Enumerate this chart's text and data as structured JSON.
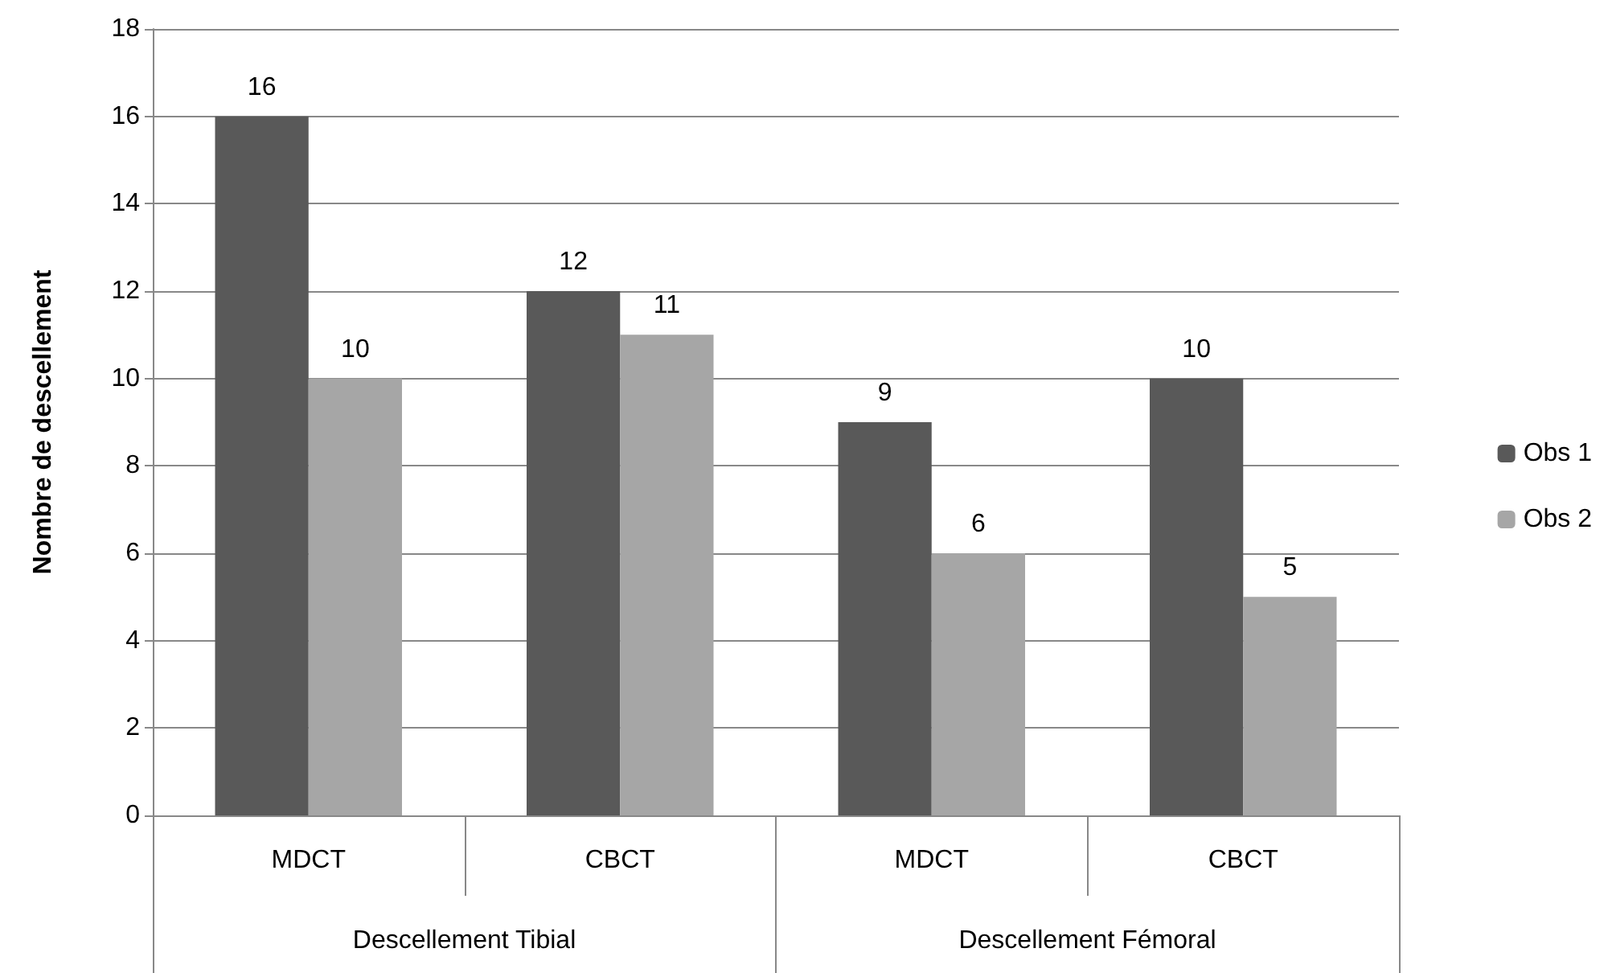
{
  "chart_data": {
    "type": "bar",
    "ylabel": "Nombre de descellement",
    "categories": [
      "MDCT",
      "CBCT",
      "MDCT",
      "CBCT"
    ],
    "series": [
      {
        "name": "Obs 1",
        "color": "#595959",
        "values": [
          16,
          12,
          9,
          10
        ]
      },
      {
        "name": "Obs 2",
        "color": "#a6a6a6",
        "values": [
          10,
          11,
          6,
          5
        ]
      }
    ],
    "annotations": [
      "Descellement Tibial",
      "Descellement Fémoral"
    ],
    "ylim": [
      0,
      18
    ],
    "yticks": [
      0,
      2,
      4,
      6,
      8,
      10,
      12,
      14,
      16,
      18
    ],
    "grid": "y",
    "legend": "right",
    "data_labels": true
  }
}
